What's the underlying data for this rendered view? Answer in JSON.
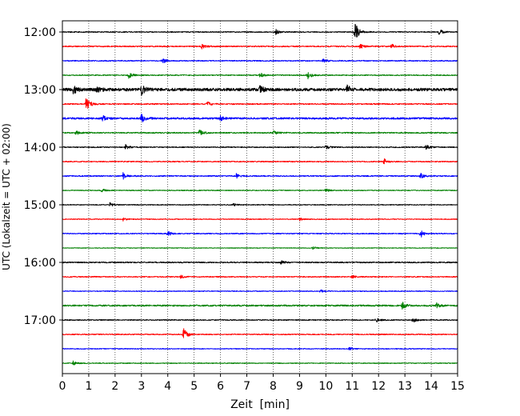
{
  "chart_data": {
    "type": "line",
    "chart_kind": "seismogram-helicorder",
    "xlabel": "Zeit  [min]",
    "ylabel": "UTC (Lokalzeit = UTC + 02:00)",
    "xlim": [
      0,
      15
    ],
    "x_ticks": [
      0,
      1,
      2,
      3,
      4,
      5,
      6,
      7,
      8,
      9,
      10,
      11,
      12,
      13,
      14,
      15
    ],
    "x_tick_labels": [
      "0",
      "1",
      "2",
      "3",
      "4",
      "5",
      "6",
      "7",
      "8",
      "9",
      "10",
      "11",
      "12",
      "13",
      "14",
      "15"
    ],
    "y_tick_labels": [
      "12:00",
      "13:00",
      "14:00",
      "15:00",
      "16:00",
      "17:00"
    ],
    "minutes_per_row": 15,
    "grid": "vertical dotted lines at each minute",
    "color_cycle": [
      "#000000",
      "#ff0000",
      "#0000ff",
      "#008000"
    ],
    "traces": [
      {
        "start": "12:00",
        "color": "#000000",
        "noise": 0.6,
        "events": [
          {
            "t": 8.1,
            "a": 3
          },
          {
            "t": 11.1,
            "a": 14
          },
          {
            "t": 14.3,
            "a": 4
          }
        ]
      },
      {
        "start": "12:15",
        "color": "#ff0000",
        "noise": 0.7,
        "events": [
          {
            "t": 5.3,
            "a": 3
          },
          {
            "t": 11.3,
            "a": 3
          },
          {
            "t": 12.5,
            "a": 3
          }
        ]
      },
      {
        "start": "12:30",
        "color": "#0000ff",
        "noise": 0.6,
        "events": [
          {
            "t": 3.8,
            "a": 3
          },
          {
            "t": 9.9,
            "a": 2.5
          }
        ]
      },
      {
        "start": "12:45",
        "color": "#008000",
        "noise": 0.6,
        "events": [
          {
            "t": 2.5,
            "a": 5
          },
          {
            "t": 7.5,
            "a": 3
          },
          {
            "t": 9.3,
            "a": 5
          }
        ]
      },
      {
        "start": "13:00",
        "color": "#000000",
        "noise": 1.8,
        "events": [
          {
            "t": 0.4,
            "a": 6
          },
          {
            "t": 1.3,
            "a": 4
          },
          {
            "t": 3.0,
            "a": 6
          },
          {
            "t": 7.5,
            "a": 5
          },
          {
            "t": 10.8,
            "a": 5
          }
        ]
      },
      {
        "start": "13:15",
        "color": "#ff0000",
        "noise": 0.7,
        "events": [
          {
            "t": 0.9,
            "a": 11
          },
          {
            "t": 5.5,
            "a": 3
          }
        ]
      },
      {
        "start": "13:30",
        "color": "#0000ff",
        "noise": 1.1,
        "events": [
          {
            "t": 1.5,
            "a": 4
          },
          {
            "t": 3.0,
            "a": 5
          },
          {
            "t": 6.0,
            "a": 3
          }
        ]
      },
      {
        "start": "13:45",
        "color": "#008000",
        "noise": 0.7,
        "events": [
          {
            "t": 0.5,
            "a": 3
          },
          {
            "t": 5.2,
            "a": 4
          },
          {
            "t": 8.0,
            "a": 3
          }
        ]
      },
      {
        "start": "14:00",
        "color": "#000000",
        "noise": 0.6,
        "events": [
          {
            "t": 2.4,
            "a": 3
          },
          {
            "t": 10.0,
            "a": 2.5
          },
          {
            "t": 13.8,
            "a": 3
          }
        ]
      },
      {
        "start": "14:15",
        "color": "#ff0000",
        "noise": 0.6,
        "events": [
          {
            "t": 12.2,
            "a": 4
          }
        ]
      },
      {
        "start": "14:30",
        "color": "#0000ff",
        "noise": 0.7,
        "events": [
          {
            "t": 2.3,
            "a": 4
          },
          {
            "t": 6.6,
            "a": 3
          },
          {
            "t": 13.6,
            "a": 3
          }
        ]
      },
      {
        "start": "14:45",
        "color": "#008000",
        "noise": 0.5,
        "events": [
          {
            "t": 1.5,
            "a": 2
          },
          {
            "t": 10.0,
            "a": 2
          }
        ]
      },
      {
        "start": "15:00",
        "color": "#000000",
        "noise": 0.5,
        "events": [
          {
            "t": 1.8,
            "a": 2.5
          },
          {
            "t": 6.5,
            "a": 2
          }
        ]
      },
      {
        "start": "15:15",
        "color": "#ff0000",
        "noise": 0.5,
        "events": [
          {
            "t": 2.3,
            "a": 2
          },
          {
            "t": 9.0,
            "a": 2
          }
        ]
      },
      {
        "start": "15:30",
        "color": "#0000ff",
        "noise": 0.6,
        "events": [
          {
            "t": 4.0,
            "a": 3
          },
          {
            "t": 13.6,
            "a": 5
          }
        ]
      },
      {
        "start": "15:45",
        "color": "#008000",
        "noise": 0.4,
        "events": [
          {
            "t": 9.5,
            "a": 2
          }
        ]
      },
      {
        "start": "16:00",
        "color": "#000000",
        "noise": 0.7,
        "events": [
          {
            "t": 8.3,
            "a": 2.5
          }
        ]
      },
      {
        "start": "16:15",
        "color": "#ff0000",
        "noise": 0.6,
        "events": [
          {
            "t": 4.5,
            "a": 2
          },
          {
            "t": 11.0,
            "a": 2
          }
        ]
      },
      {
        "start": "16:30",
        "color": "#0000ff",
        "noise": 0.5,
        "events": [
          {
            "t": 9.8,
            "a": 2
          }
        ]
      },
      {
        "start": "16:45",
        "color": "#008000",
        "noise": 0.9,
        "events": [
          {
            "t": 12.9,
            "a": 4
          },
          {
            "t": 14.2,
            "a": 3
          }
        ]
      },
      {
        "start": "17:00",
        "color": "#000000",
        "noise": 0.6,
        "events": [
          {
            "t": 11.9,
            "a": 3
          },
          {
            "t": 13.3,
            "a": 3
          }
        ]
      },
      {
        "start": "17:15",
        "color": "#ff0000",
        "noise": 0.6,
        "events": [
          {
            "t": 4.6,
            "a": 9
          }
        ]
      },
      {
        "start": "17:30",
        "color": "#0000ff",
        "noise": 0.5,
        "events": [
          {
            "t": 10.9,
            "a": 2
          }
        ]
      },
      {
        "start": "17:45",
        "color": "#008000",
        "noise": 0.5,
        "events": [
          {
            "t": 0.4,
            "a": 3
          }
        ]
      }
    ]
  }
}
